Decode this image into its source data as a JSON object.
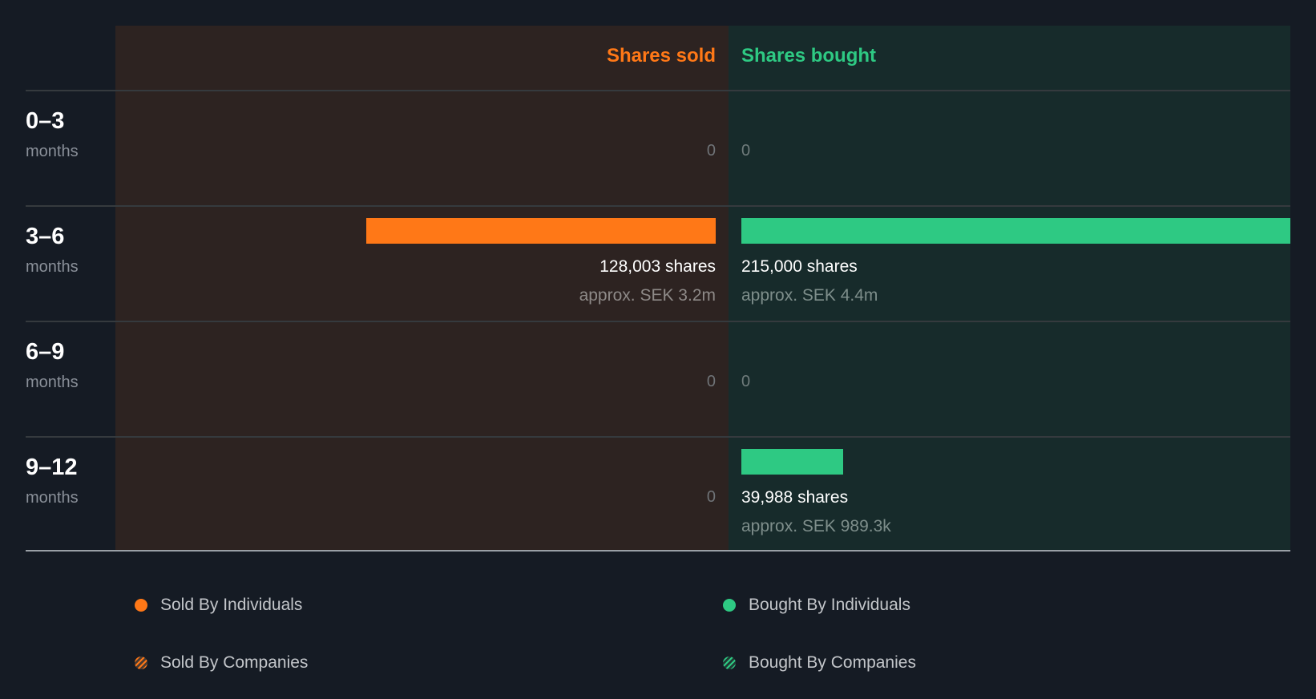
{
  "chart_data": {
    "type": "bar",
    "orientation": "diverging-horizontal",
    "headers": {
      "sold": "Shares sold",
      "bought": "Shares bought"
    },
    "rows": [
      {
        "range": "0–3",
        "unit": "months",
        "sold": 0,
        "bought": 0,
        "sold_label": "0",
        "bought_label": "0"
      },
      {
        "range": "3–6",
        "unit": "months",
        "sold": 128003,
        "bought": 215000,
        "sold_label": "128,003 shares",
        "sold_approx": "approx. SEK 3.2m",
        "bought_label": "215,000 shares",
        "bought_approx": "approx. SEK 4.4m"
      },
      {
        "range": "6–9",
        "unit": "months",
        "sold": 0,
        "bought": 0,
        "sold_label": "0",
        "bought_label": "0"
      },
      {
        "range": "9–12",
        "unit": "months",
        "sold": 0,
        "bought": 39988,
        "sold_label": "0",
        "bought_label": "39,988 shares",
        "bought_approx": "approx. SEK 989.3k"
      }
    ],
    "legend": [
      {
        "label": "Sold By Individuals",
        "color": "#ff7817",
        "style": "solid"
      },
      {
        "label": "Bought By Individuals",
        "color": "#2ec983",
        "style": "solid"
      },
      {
        "label": "Sold By Companies",
        "color": "#ff7817",
        "style": "striped"
      },
      {
        "label": "Bought By Companies",
        "color": "#2ec983",
        "style": "striped"
      }
    ],
    "colors": {
      "sold": "#ff7817",
      "bought": "#2ec983"
    }
  }
}
